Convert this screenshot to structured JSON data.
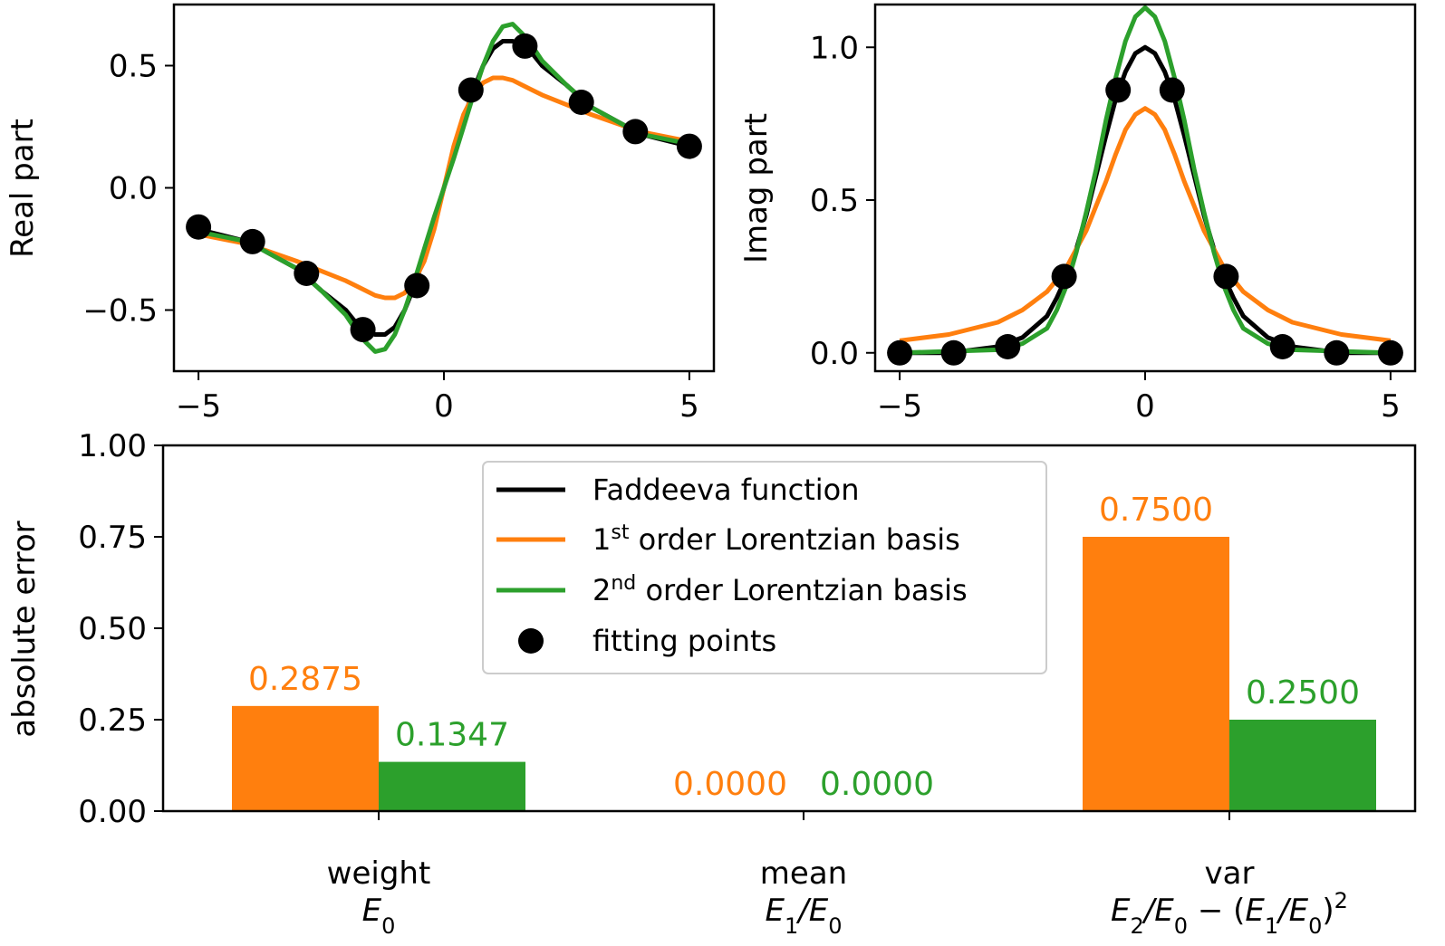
{
  "colors": {
    "faddeeva": "#000000",
    "first_order": "#ff7f0e",
    "second_order": "#2ca02c",
    "points": "#000000",
    "axes": "#000000",
    "legend_border": "#cccccc",
    "background": "#ffffff"
  },
  "chart_data": [
    {
      "id": "real",
      "type": "line",
      "ylabel": "Real part",
      "xlim": [
        -5.5,
        5.5
      ],
      "ylim": [
        -0.75,
        0.75
      ],
      "xticks": [
        -5,
        0,
        5
      ],
      "xtick_labels": [
        "−5",
        "0",
        "5"
      ],
      "yticks": [
        -0.5,
        0.0,
        0.5
      ],
      "ytick_labels": [
        "−0.5",
        "0.0",
        "0.5"
      ],
      "x": [
        -5,
        -4,
        -3,
        -2.5,
        -2,
        -1.8,
        -1.6,
        -1.4,
        -1.2,
        -1,
        -0.8,
        -0.6,
        -0.4,
        -0.2,
        0,
        0.2,
        0.4,
        0.6,
        0.8,
        1,
        1.2,
        1.4,
        1.6,
        1.8,
        2,
        2.5,
        3,
        4,
        5
      ],
      "series": [
        {
          "name": "Faddeeva function",
          "color": "#000000",
          "values": [
            -0.17,
            -0.22,
            -0.33,
            -0.42,
            -0.5,
            -0.55,
            -0.58,
            -0.6,
            -0.6,
            -0.57,
            -0.5,
            -0.4,
            -0.28,
            -0.14,
            0,
            0.14,
            0.28,
            0.4,
            0.5,
            0.57,
            0.6,
            0.6,
            0.58,
            0.55,
            0.5,
            0.42,
            0.33,
            0.22,
            0.17
          ]
        },
        {
          "name": "1st order Lorentzian basis",
          "color": "#ff7f0e",
          "values": [
            -0.19,
            -0.23,
            -0.3,
            -0.34,
            -0.38,
            -0.4,
            -0.42,
            -0.44,
            -0.45,
            -0.45,
            -0.43,
            -0.38,
            -0.3,
            -0.17,
            0,
            0.17,
            0.3,
            0.38,
            0.43,
            0.45,
            0.45,
            0.44,
            0.42,
            0.4,
            0.38,
            0.34,
            0.3,
            0.23,
            0.19
          ]
        },
        {
          "name": "2nd order Lorentzian basis",
          "color": "#2ca02c",
          "values": [
            -0.18,
            -0.22,
            -0.33,
            -0.42,
            -0.52,
            -0.58,
            -0.63,
            -0.67,
            -0.66,
            -0.6,
            -0.5,
            -0.38,
            -0.25,
            -0.12,
            0,
            0.12,
            0.25,
            0.38,
            0.5,
            0.6,
            0.66,
            0.67,
            0.63,
            0.58,
            0.52,
            0.42,
            0.33,
            0.22,
            0.18
          ]
        }
      ],
      "points": {
        "name": "fitting points",
        "x": [
          -5,
          -3.9,
          -2.8,
          -1.65,
          -0.55,
          0.55,
          1.65,
          2.8,
          3.9,
          5
        ],
        "y": [
          -0.16,
          -0.22,
          -0.35,
          -0.58,
          -0.4,
          0.4,
          0.58,
          0.35,
          0.23,
          0.17
        ]
      }
    },
    {
      "id": "imag",
      "type": "line",
      "ylabel": "Imag part",
      "xlim": [
        -5.5,
        5.5
      ],
      "ylim": [
        -0.06,
        1.14
      ],
      "xticks": [
        -5,
        0,
        5
      ],
      "xtick_labels": [
        "−5",
        "0",
        "5"
      ],
      "yticks": [
        0.0,
        0.5,
        1.0
      ],
      "ytick_labels": [
        "0.0",
        "0.5",
        "1.0"
      ],
      "x": [
        -5,
        -4,
        -3,
        -2.5,
        -2,
        -1.8,
        -1.6,
        -1.4,
        -1.2,
        -1,
        -0.8,
        -0.6,
        -0.4,
        -0.2,
        0,
        0.2,
        0.4,
        0.6,
        0.8,
        1,
        1.2,
        1.4,
        1.6,
        1.8,
        2,
        2.5,
        3,
        4,
        5
      ],
      "series": [
        {
          "name": "Faddeeva function",
          "color": "#000000",
          "values": [
            0,
            0,
            0.02,
            0.05,
            0.12,
            0.18,
            0.25,
            0.34,
            0.45,
            0.58,
            0.71,
            0.83,
            0.92,
            0.98,
            1.0,
            0.98,
            0.92,
            0.83,
            0.71,
            0.58,
            0.45,
            0.34,
            0.25,
            0.18,
            0.12,
            0.05,
            0.02,
            0,
            0
          ]
        },
        {
          "name": "1st order Lorentzian basis",
          "color": "#ff7f0e",
          "values": [
            0.04,
            0.06,
            0.1,
            0.14,
            0.2,
            0.24,
            0.28,
            0.34,
            0.4,
            0.48,
            0.56,
            0.65,
            0.73,
            0.78,
            0.8,
            0.78,
            0.73,
            0.65,
            0.56,
            0.48,
            0.4,
            0.34,
            0.28,
            0.24,
            0.2,
            0.14,
            0.1,
            0.06,
            0.04
          ]
        },
        {
          "name": "2nd order Lorentzian basis",
          "color": "#2ca02c",
          "values": [
            0,
            0.005,
            0.01,
            0.03,
            0.08,
            0.14,
            0.22,
            0.33,
            0.46,
            0.6,
            0.76,
            0.9,
            1.02,
            1.1,
            1.13,
            1.1,
            1.02,
            0.9,
            0.76,
            0.6,
            0.46,
            0.33,
            0.22,
            0.14,
            0.08,
            0.03,
            0.01,
            0.005,
            0
          ]
        }
      ],
      "points": {
        "name": "fitting points",
        "x": [
          -5,
          -3.9,
          -2.8,
          -1.65,
          -0.55,
          0.55,
          1.65,
          2.8,
          3.9,
          5
        ],
        "y": [
          0.0,
          0.0,
          0.02,
          0.25,
          0.86,
          0.86,
          0.25,
          0.02,
          0.0,
          0.0
        ]
      }
    },
    {
      "id": "errors",
      "type": "bar",
      "ylabel": "absolute error",
      "ylim": [
        0,
        1.0
      ],
      "yticks": [
        0,
        0.25,
        0.5,
        0.75,
        1.0
      ],
      "ytick_labels": [
        "0.00",
        "0.25",
        "0.50",
        "0.75",
        "1.00"
      ],
      "categories": [
        "weight",
        "mean",
        "var"
      ],
      "category_formulas": [
        "E0",
        "E1/E0",
        "E2/E0 − (E1/E0)2"
      ],
      "series": [
        {
          "name": "1st order Lorentzian basis",
          "color": "#ff7f0e",
          "values": [
            0.2875,
            0.0,
            0.75
          ],
          "labels": [
            "0.2875",
            "0.0000",
            "0.7500"
          ]
        },
        {
          "name": "2nd order Lorentzian basis",
          "color": "#2ca02c",
          "values": [
            0.1347,
            0.0,
            0.25
          ],
          "labels": [
            "0.1347",
            "0.0000",
            "0.2500"
          ]
        }
      ]
    }
  ],
  "legend": {
    "placement": "upper-center",
    "items": [
      {
        "kind": "line",
        "color": "#000000",
        "label": "Faddeeva function"
      },
      {
        "kind": "line",
        "color": "#ff7f0e",
        "label_prefix": "1",
        "label_sup": "st",
        "label_rest": " order Lorentzian basis"
      },
      {
        "kind": "line",
        "color": "#2ca02c",
        "label_prefix": "2",
        "label_sup": "nd",
        "label_rest": " order Lorentzian basis"
      },
      {
        "kind": "dot",
        "color": "#000000",
        "label": "fitting points"
      }
    ]
  }
}
